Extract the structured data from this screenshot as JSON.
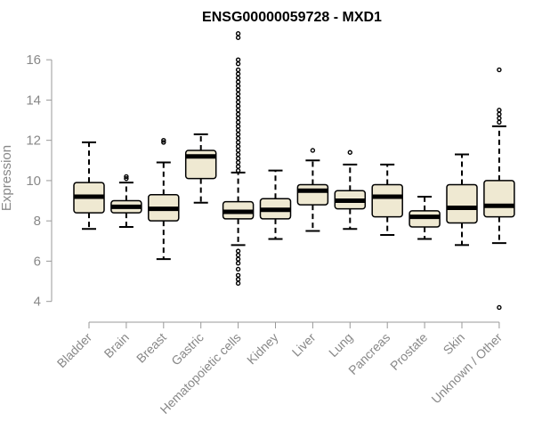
{
  "chart_data": {
    "type": "boxplot",
    "title": "ENSG00000059728 - MXD1",
    "ylabel": "Expression",
    "ylim": [
      3.5,
      17.2
    ],
    "yticks": [
      4,
      6,
      8,
      10,
      12,
      14,
      16
    ],
    "categories": [
      "Bladder",
      "Brain",
      "Breast",
      "Gastric",
      "Hematopoietic cells",
      "Kidney",
      "Liver",
      "Lung",
      "Pancreas",
      "Prostate",
      "Skin",
      "Unknown / Other"
    ],
    "boxes": [
      {
        "min": 7.6,
        "q1": 8.4,
        "median": 9.2,
        "q3": 9.9,
        "max": 11.9,
        "outliers": []
      },
      {
        "min": 7.7,
        "q1": 8.4,
        "median": 8.7,
        "q3": 9.0,
        "max": 9.9,
        "outliers": [
          10.1,
          10.2
        ]
      },
      {
        "min": 6.1,
        "q1": 8.0,
        "median": 8.6,
        "q3": 9.3,
        "max": 10.9,
        "outliers": [
          11.9,
          12.0
        ]
      },
      {
        "min": 8.9,
        "q1": 10.1,
        "median": 11.2,
        "q3": 11.5,
        "max": 12.3,
        "outliers": []
      },
      {
        "min": 6.8,
        "q1": 8.1,
        "median": 8.45,
        "q3": 8.95,
        "max": 10.4,
        "outliers": [
          4.9,
          5.1,
          5.3,
          5.6,
          5.9,
          6.1,
          6.3,
          6.5,
          10.5,
          10.7,
          10.9,
          11.1,
          11.3,
          11.5,
          11.7,
          11.9,
          12.1,
          12.3,
          12.5,
          12.7,
          12.9,
          13.1,
          13.3,
          13.5,
          13.7,
          13.9,
          14.1,
          14.3,
          14.5,
          14.7,
          14.9,
          15.1,
          15.3,
          15.5,
          15.8,
          16.0,
          17.1,
          17.3
        ]
      },
      {
        "min": 7.1,
        "q1": 8.1,
        "median": 8.55,
        "q3": 9.1,
        "max": 10.5,
        "outliers": []
      },
      {
        "min": 7.5,
        "q1": 8.8,
        "median": 9.5,
        "q3": 9.8,
        "max": 11.0,
        "outliers": [
          11.5
        ]
      },
      {
        "min": 7.6,
        "q1": 8.6,
        "median": 9.0,
        "q3": 9.5,
        "max": 10.8,
        "outliers": [
          11.4
        ]
      },
      {
        "min": 7.3,
        "q1": 8.2,
        "median": 9.2,
        "q3": 9.8,
        "max": 10.8,
        "outliers": []
      },
      {
        "min": 7.1,
        "q1": 7.7,
        "median": 8.2,
        "q3": 8.5,
        "max": 9.2,
        "outliers": []
      },
      {
        "min": 6.8,
        "q1": 7.9,
        "median": 8.65,
        "q3": 9.8,
        "max": 11.3,
        "outliers": []
      },
      {
        "min": 6.9,
        "q1": 8.2,
        "median": 8.75,
        "q3": 10.0,
        "max": 12.7,
        "outliers": [
          3.7,
          12.9,
          13.1,
          13.3,
          13.5,
          15.5
        ]
      }
    ],
    "box_fill": "#efe9d2",
    "box_stroke": "#000000",
    "grid": false
  }
}
